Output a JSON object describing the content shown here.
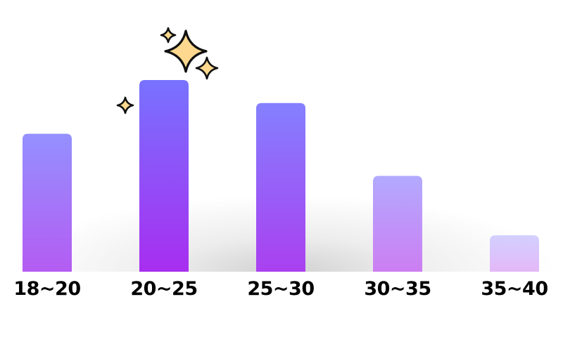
{
  "chart_data": {
    "type": "bar",
    "categories": [
      "18~20",
      "20~25",
      "25~30",
      "30~35",
      "35~40"
    ],
    "values": [
      72,
      100,
      88,
      50,
      19
    ],
    "title": "",
    "xlabel": "",
    "ylabel": "",
    "ylim": [
      0,
      100
    ],
    "grid": false,
    "bar_colors": [
      {
        "top": "#9490ff",
        "bottom": "#b45cf2"
      },
      {
        "top": "#7872ff",
        "bottom": "#a82ef0"
      },
      {
        "top": "#8480ff",
        "bottom": "#aa40f0"
      },
      {
        "top": "#b2aaff",
        "bottom": "#cc7ef2"
      },
      {
        "top": "#d2d0ff",
        "bottom": "#e4b8f8"
      }
    ],
    "decoration": "sparkles-icon above tallest bar",
    "sparkle_color": "#fdd88e"
  }
}
